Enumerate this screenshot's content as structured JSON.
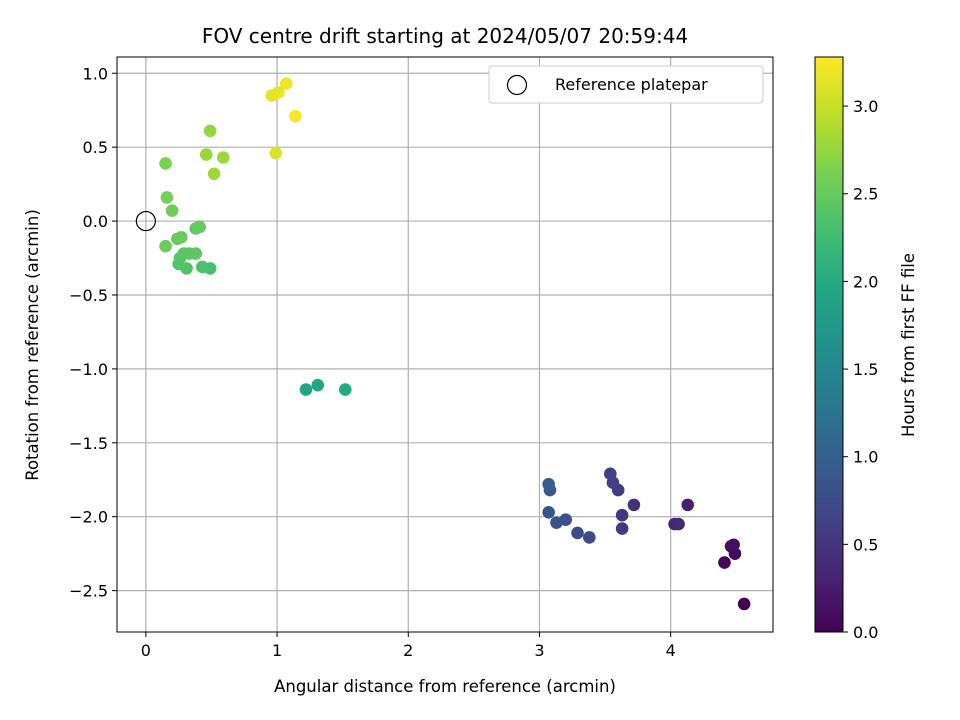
{
  "chart_data": {
    "type": "scatter",
    "title": "FOV centre drift starting at 2024/05/07 20:59:44",
    "xlabel": "Angular distance from reference (arcmin)",
    "ylabel": "Rotation from reference (arcmin)",
    "xlim": [
      -0.22,
      4.78
    ],
    "ylim": [
      -2.78,
      1.11
    ],
    "x_ticks": [
      0,
      1,
      2,
      3,
      4
    ],
    "y_ticks": [
      1.0,
      0.5,
      0.0,
      -0.5,
      -1.0,
      -1.5,
      -2.0,
      -2.5
    ],
    "x_tick_labels": [
      "0",
      "1",
      "2",
      "3",
      "4"
    ],
    "y_tick_labels": [
      "1.0",
      "0.5",
      "0.0",
      "−0.5",
      "−1.0",
      "−1.5",
      "−2.0",
      "−2.5"
    ],
    "grid": true,
    "legend": {
      "position": "upper-right",
      "entries": [
        "Reference platepar"
      ]
    },
    "reference_point": {
      "x": 0.0,
      "y": 0.0
    },
    "colorbar": {
      "label": "Hours from first FF file",
      "range": [
        0.0,
        3.28
      ],
      "ticks": [
        0.0,
        0.5,
        1.0,
        1.5,
        2.0,
        2.5,
        3.0
      ],
      "tick_labels": [
        "0.0",
        "0.5",
        "1.0",
        "1.5",
        "2.0",
        "2.5",
        "3.0"
      ],
      "colormap": "viridis"
    },
    "series": [
      {
        "points": [
          {
            "x": 4.56,
            "y": -2.59,
            "c": 0.0
          },
          {
            "x": 4.41,
            "y": -2.31,
            "c": 0.05
          },
          {
            "x": 4.49,
            "y": -2.25,
            "c": 0.08
          },
          {
            "x": 4.46,
            "y": -2.2,
            "c": 0.1
          },
          {
            "x": 4.48,
            "y": -2.19,
            "c": 0.12
          },
          {
            "x": 4.13,
            "y": -1.92,
            "c": 0.28
          },
          {
            "x": 4.03,
            "y": -2.05,
            "c": 0.33
          },
          {
            "x": 4.06,
            "y": -2.05,
            "c": 0.36
          },
          {
            "x": 3.72,
            "y": -1.92,
            "c": 0.45
          },
          {
            "x": 3.63,
            "y": -1.99,
            "c": 0.5
          },
          {
            "x": 3.63,
            "y": -2.08,
            "c": 0.53
          },
          {
            "x": 3.6,
            "y": -1.82,
            "c": 0.56
          },
          {
            "x": 3.56,
            "y": -1.77,
            "c": 0.6
          },
          {
            "x": 3.54,
            "y": -1.71,
            "c": 0.63
          },
          {
            "x": 3.38,
            "y": -2.14,
            "c": 0.72
          },
          {
            "x": 3.29,
            "y": -2.11,
            "c": 0.76
          },
          {
            "x": 3.2,
            "y": -2.02,
            "c": 0.8
          },
          {
            "x": 3.13,
            "y": -2.04,
            "c": 0.84
          },
          {
            "x": 3.07,
            "y": -1.97,
            "c": 0.87
          },
          {
            "x": 3.08,
            "y": -1.82,
            "c": 0.9
          },
          {
            "x": 3.07,
            "y": -1.78,
            "c": 0.93
          },
          {
            "x": 1.22,
            "y": -1.14,
            "c": 1.95
          },
          {
            "x": 1.31,
            "y": -1.11,
            "c": 1.97
          },
          {
            "x": 1.52,
            "y": -1.14,
            "c": 2.0
          },
          {
            "x": 0.49,
            "y": -0.32,
            "c": 2.3
          },
          {
            "x": 0.43,
            "y": -0.31,
            "c": 2.33
          },
          {
            "x": 0.31,
            "y": -0.32,
            "c": 2.36
          },
          {
            "x": 0.25,
            "y": -0.29,
            "c": 2.38
          },
          {
            "x": 0.26,
            "y": -0.25,
            "c": 2.4
          },
          {
            "x": 0.29,
            "y": -0.22,
            "c": 2.42
          },
          {
            "x": 0.33,
            "y": -0.22,
            "c": 2.44
          },
          {
            "x": 0.38,
            "y": -0.22,
            "c": 2.45
          },
          {
            "x": 0.38,
            "y": -0.05,
            "c": 2.47
          },
          {
            "x": 0.41,
            "y": -0.04,
            "c": 2.49
          },
          {
            "x": 0.24,
            "y": -0.12,
            "c": 2.5
          },
          {
            "x": 0.27,
            "y": -0.11,
            "c": 2.52
          },
          {
            "x": 0.15,
            "y": -0.17,
            "c": 2.54
          },
          {
            "x": 0.2,
            "y": 0.07,
            "c": 2.56
          },
          {
            "x": 0.16,
            "y": 0.16,
            "c": 2.58
          },
          {
            "x": 0.15,
            "y": 0.39,
            "c": 2.62
          },
          {
            "x": 0.52,
            "y": 0.32,
            "c": 2.8
          },
          {
            "x": 0.59,
            "y": 0.43,
            "c": 2.78
          },
          {
            "x": 0.46,
            "y": 0.45,
            "c": 2.76
          },
          {
            "x": 0.49,
            "y": 0.61,
            "c": 2.74
          },
          {
            "x": 0.99,
            "y": 0.46,
            "c": 3.1
          },
          {
            "x": 0.96,
            "y": 0.85,
            "c": 3.15
          },
          {
            "x": 1.01,
            "y": 0.87,
            "c": 3.18
          },
          {
            "x": 1.07,
            "y": 0.93,
            "c": 3.22
          },
          {
            "x": 1.14,
            "y": 0.71,
            "c": 3.26
          }
        ]
      }
    ]
  }
}
